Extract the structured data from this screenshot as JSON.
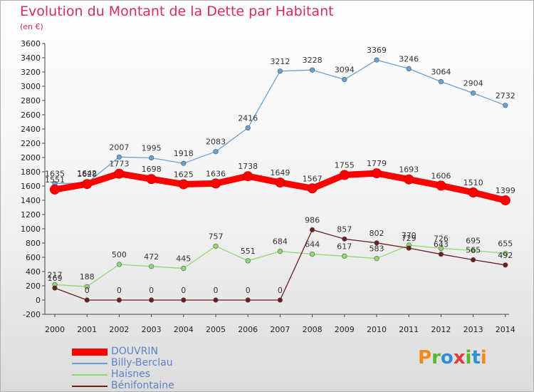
{
  "title": "Evolution du Montant de la Dette par Habitant",
  "subtitle": "(en €)",
  "logo": [
    "P",
    "r",
    "o",
    "x",
    "i",
    "t",
    "i"
  ],
  "logo_colors": [
    "#f08a1a",
    "#5ab62e",
    "#2e8fd6",
    "#e23a3a",
    "#5ab62e",
    "#2e8fd6",
    "#f08a1a"
  ],
  "chart_data": {
    "type": "line",
    "x": [
      "2000",
      "2001",
      "2002",
      "2003",
      "2004",
      "2005",
      "2006",
      "2007",
      "2008",
      "2009",
      "2010",
      "2011",
      "2012",
      "2013",
      "2014"
    ],
    "ylim": [
      -200,
      3600
    ],
    "yticks": [
      -200,
      0,
      200,
      400,
      600,
      800,
      1000,
      1200,
      1400,
      1600,
      1800,
      2000,
      2200,
      2400,
      2600,
      2800,
      3000,
      3200,
      3400,
      3600
    ],
    "grid": false,
    "legend_position": "bottom-left",
    "series": [
      {
        "name": "DOUVRIN",
        "color": "#ff0000",
        "values": [
          1551,
          1628,
          1773,
          1698,
          1625,
          1636,
          1738,
          1649,
          1567,
          1755,
          1779,
          1693,
          1606,
          1510,
          1399
        ]
      },
      {
        "name": "Billy-Berclau",
        "color": "#6aa0d8",
        "values": [
          1635,
          1642,
          2007,
          1995,
          1918,
          2083,
          2416,
          3212,
          3228,
          3094,
          3369,
          3246,
          3064,
          2904,
          2732
        ]
      },
      {
        "name": "Haisnes",
        "color": "#90d870",
        "values": [
          217,
          188,
          500,
          472,
          445,
          757,
          551,
          684,
          644,
          617,
          583,
          770,
          726,
          695,
          655
        ]
      },
      {
        "name": "Bénifontaine",
        "color": "#6b1e1e",
        "values": [
          169,
          0,
          0,
          0,
          0,
          0,
          0,
          0,
          986,
          857,
          802,
          729,
          643,
          565,
          492
        ]
      }
    ]
  }
}
